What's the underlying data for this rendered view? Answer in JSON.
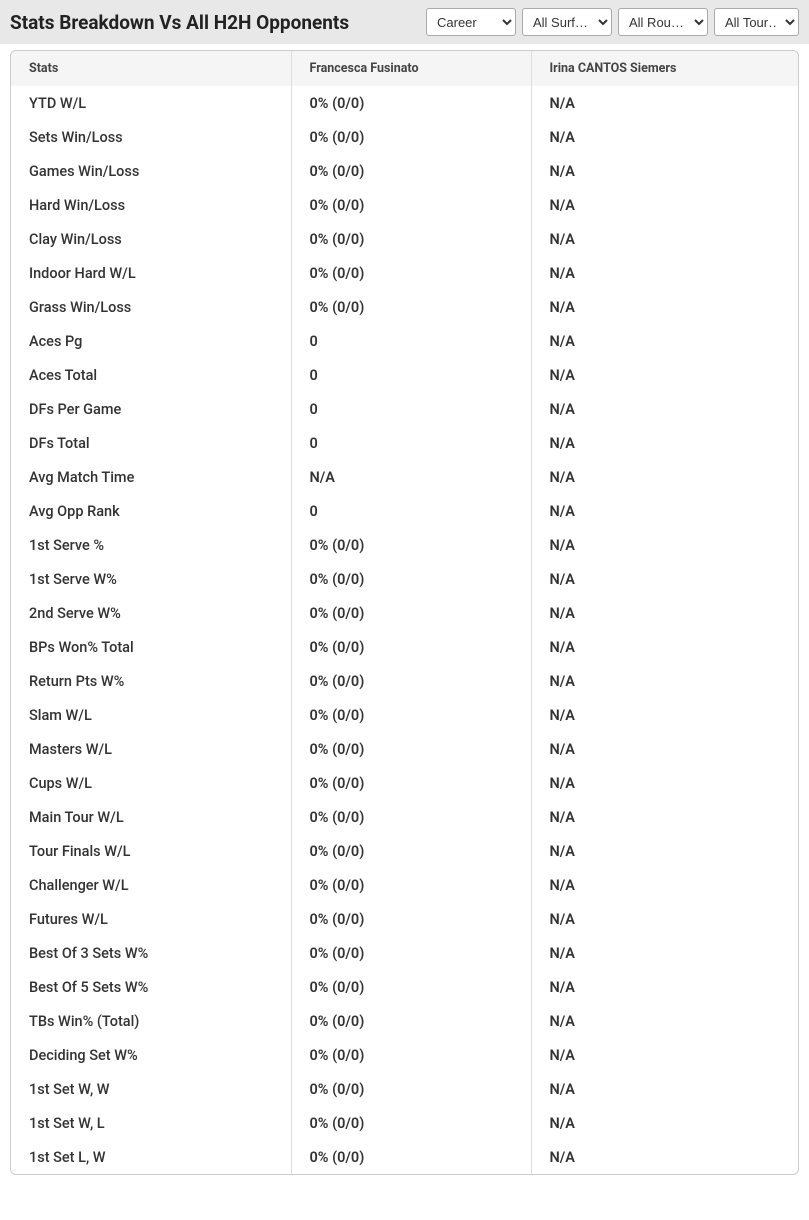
{
  "header": {
    "title": "Stats Breakdown Vs All H2H Opponents"
  },
  "filters": {
    "career": "Career",
    "surface": "All Surf…",
    "rounds": "All Rou…",
    "tours": "All Tour…"
  },
  "table": {
    "columns": {
      "stats": "Stats",
      "player1": "Francesca Fusinato",
      "player2": "Irina CANTOS Siemers"
    },
    "rows": [
      {
        "stat": "YTD W/L",
        "p1": "0% (0/0)",
        "p2": "N/A"
      },
      {
        "stat": "Sets Win/Loss",
        "p1": "0% (0/0)",
        "p2": "N/A"
      },
      {
        "stat": "Games Win/Loss",
        "p1": "0% (0/0)",
        "p2": "N/A"
      },
      {
        "stat": "Hard Win/Loss",
        "p1": "0% (0/0)",
        "p2": "N/A"
      },
      {
        "stat": "Clay Win/Loss",
        "p1": "0% (0/0)",
        "p2": "N/A"
      },
      {
        "stat": "Indoor Hard W/L",
        "p1": "0% (0/0)",
        "p2": "N/A"
      },
      {
        "stat": "Grass Win/Loss",
        "p1": "0% (0/0)",
        "p2": "N/A"
      },
      {
        "stat": "Aces Pg",
        "p1": "0",
        "p2": "N/A"
      },
      {
        "stat": "Aces Total",
        "p1": "0",
        "p2": "N/A"
      },
      {
        "stat": "DFs Per Game",
        "p1": "0",
        "p2": "N/A"
      },
      {
        "stat": "DFs Total",
        "p1": "0",
        "p2": "N/A"
      },
      {
        "stat": "Avg Match Time",
        "p1": "N/A",
        "p2": "N/A"
      },
      {
        "stat": "Avg Opp Rank",
        "p1": "0",
        "p2": "N/A"
      },
      {
        "stat": "1st Serve %",
        "p1": "0% (0/0)",
        "p2": "N/A"
      },
      {
        "stat": "1st Serve W%",
        "p1": "0% (0/0)",
        "p2": "N/A"
      },
      {
        "stat": "2nd Serve W%",
        "p1": "0% (0/0)",
        "p2": "N/A"
      },
      {
        "stat": "BPs Won% Total",
        "p1": "0% (0/0)",
        "p2": "N/A"
      },
      {
        "stat": "Return Pts W%",
        "p1": "0% (0/0)",
        "p2": "N/A"
      },
      {
        "stat": "Slam W/L",
        "p1": "0% (0/0)",
        "p2": "N/A"
      },
      {
        "stat": "Masters W/L",
        "p1": "0% (0/0)",
        "p2": "N/A"
      },
      {
        "stat": "Cups W/L",
        "p1": "0% (0/0)",
        "p2": "N/A"
      },
      {
        "stat": "Main Tour W/L",
        "p1": "0% (0/0)",
        "p2": "N/A"
      },
      {
        "stat": "Tour Finals W/L",
        "p1": "0% (0/0)",
        "p2": "N/A"
      },
      {
        "stat": "Challenger W/L",
        "p1": "0% (0/0)",
        "p2": "N/A"
      },
      {
        "stat": "Futures W/L",
        "p1": "0% (0/0)",
        "p2": "N/A"
      },
      {
        "stat": "Best Of 3 Sets W%",
        "p1": "0% (0/0)",
        "p2": "N/A"
      },
      {
        "stat": "Best Of 5 Sets W%",
        "p1": "0% (0/0)",
        "p2": "N/A"
      },
      {
        "stat": "TBs Win% (Total)",
        "p1": "0% (0/0)",
        "p2": "N/A"
      },
      {
        "stat": "Deciding Set W%",
        "p1": "0% (0/0)",
        "p2": "N/A"
      },
      {
        "stat": "1st Set W, W",
        "p1": "0% (0/0)",
        "p2": "N/A"
      },
      {
        "stat": "1st Set W, L",
        "p1": "0% (0/0)",
        "p2": "N/A"
      },
      {
        "stat": "1st Set L, W",
        "p1": "0% (0/0)",
        "p2": "N/A"
      }
    ]
  },
  "styling": {
    "header_bg": "#e8e8e8",
    "table_border": "#cccccc",
    "thead_bg": "#f5f5f5",
    "cell_border": "#dddddd",
    "text_color": "#333333",
    "title_color": "#222222"
  }
}
